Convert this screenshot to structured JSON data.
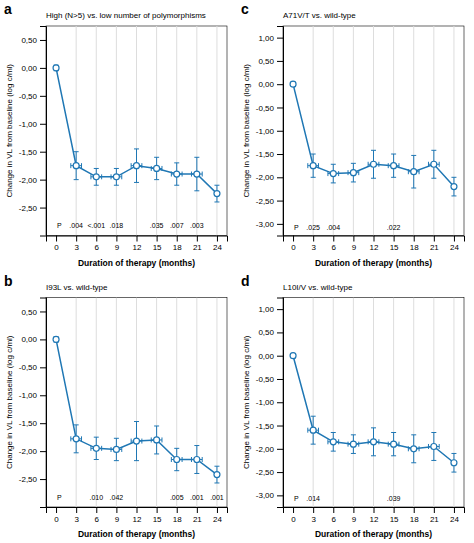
{
  "chart_data": [
    {
      "type": "line",
      "panel_label": "a",
      "title": "High (N>5) vs. low number of polymorphisms",
      "xlabel": "Duration of therapy (months)",
      "ylabel": "Change in VL from baseline (log c/ml)",
      "x": [
        0,
        3,
        6,
        9,
        12,
        15,
        18,
        21,
        24
      ],
      "series": [
        {
          "marker": "circle",
          "values": [
            0.0,
            -1.75,
            -1.95,
            -1.95,
            -1.75,
            -1.8,
            -1.9,
            -1.9,
            -2.25
          ],
          "yerr_low": [
            0.05,
            0.25,
            0.15,
            0.15,
            0.3,
            0.2,
            0.2,
            0.3,
            0.15
          ],
          "yerr_high": [
            0.05,
            0.25,
            0.15,
            0.15,
            0.3,
            0.2,
            0.2,
            0.3,
            0.15
          ],
          "xerr": [
            0,
            0.8,
            0.8,
            0.8,
            0.8,
            0.8,
            0.8,
            0.8,
            0
          ]
        }
      ],
      "xlim": [
        -1.5,
        25.5
      ],
      "xticks": [
        0,
        3,
        6,
        9,
        12,
        15,
        18,
        21,
        24
      ],
      "ylim": [
        -3.0,
        0.75
      ],
      "yticks": [
        {
          "value": 0.5,
          "label": "0,50"
        },
        {
          "value": 0.0,
          "label": "0,00"
        },
        {
          "value": -0.5,
          "label": "-0,50"
        },
        {
          "value": -1.0,
          "label": "-1,00"
        },
        {
          "value": -1.5,
          "label": "-1,50"
        },
        {
          "value": -2.0,
          "label": "-2,00"
        },
        {
          "value": -2.5,
          "label": "-2,50"
        }
      ],
      "vlines": [
        3,
        6,
        9,
        12,
        15,
        18,
        21,
        24
      ],
      "annotations": [
        {
          "text": "P",
          "x": 0.5,
          "y": -2.78
        },
        {
          "text": ".004",
          "x": 3,
          "y": -2.78
        },
        {
          "text": "<.001",
          "x": 6,
          "y": -2.78
        },
        {
          "text": ".018",
          "x": 9,
          "y": -2.78
        },
        {
          "text": ".035",
          "x": 15,
          "y": -2.78
        },
        {
          "text": ".007",
          "x": 18,
          "y": -2.78
        },
        {
          "text": ".003",
          "x": 21,
          "y": -2.78
        }
      ]
    },
    {
      "type": "line",
      "panel_label": "c",
      "title": "A71V/T vs. wild-type",
      "xlabel": "Duration of therapy (months)",
      "ylabel": "Change in VL from baseline (log c/ml)",
      "x": [
        0,
        3,
        6,
        9,
        12,
        15,
        18,
        21,
        24
      ],
      "series": [
        {
          "marker": "circle",
          "values": [
            0.0,
            -1.75,
            -1.92,
            -1.9,
            -1.72,
            -1.75,
            -1.88,
            -1.72,
            -2.2
          ],
          "yerr_low": [
            0.05,
            0.25,
            0.2,
            0.2,
            0.3,
            0.25,
            0.35,
            0.3,
            0.2
          ],
          "yerr_high": [
            0.05,
            0.25,
            0.2,
            0.2,
            0.3,
            0.25,
            0.35,
            0.3,
            0.2
          ],
          "xerr": [
            0,
            0.8,
            0.8,
            0.8,
            0.8,
            0.8,
            0.8,
            0.8,
            0
          ]
        }
      ],
      "xlim": [
        -1.5,
        25.5
      ],
      "xticks": [
        0,
        3,
        6,
        9,
        12,
        15,
        18,
        21,
        24
      ],
      "ylim": [
        -3.25,
        1.25
      ],
      "yticks": [
        {
          "value": 1.0,
          "label": "1,00"
        },
        {
          "value": 0.5,
          "label": "0,50"
        },
        {
          "value": 0.0,
          "label": "0,00"
        },
        {
          "value": -0.5,
          "label": "-0,50"
        },
        {
          "value": -1.0,
          "label": "-1,00"
        },
        {
          "value": -1.5,
          "label": "-1,50"
        },
        {
          "value": -2.0,
          "label": "-2,00"
        },
        {
          "value": -2.5,
          "label": "-2,50"
        },
        {
          "value": -3.0,
          "label": "-3,00"
        }
      ],
      "vlines": [
        3,
        6,
        9,
        12,
        15,
        18,
        21,
        24
      ],
      "annotations": [
        {
          "text": "P",
          "x": 0.5,
          "y": -3.02
        },
        {
          "text": ".025",
          "x": 3,
          "y": -3.02
        },
        {
          "text": ".004",
          "x": 6,
          "y": -3.02
        },
        {
          "text": ".022",
          "x": 15,
          "y": -3.02
        }
      ]
    },
    {
      "type": "line",
      "panel_label": "b",
      "title": "I93L vs. wild-type",
      "xlabel": "Duration of therapy (months)",
      "ylabel": "Change in VL from baseline (log c/ml)",
      "x": [
        0,
        3,
        6,
        9,
        12,
        15,
        18,
        21,
        24
      ],
      "series": [
        {
          "marker": "circle",
          "values": [
            0.0,
            -1.78,
            -1.95,
            -1.97,
            -1.82,
            -1.8,
            -2.15,
            -2.15,
            -2.42
          ],
          "yerr_low": [
            0.05,
            0.25,
            0.2,
            0.2,
            0.35,
            0.25,
            0.2,
            0.25,
            0.15
          ],
          "yerr_high": [
            0.05,
            0.25,
            0.2,
            0.2,
            0.35,
            0.25,
            0.2,
            0.25,
            0.15
          ],
          "xerr": [
            0,
            0.8,
            0.8,
            0.8,
            0.8,
            0.8,
            0.8,
            0.8,
            0
          ]
        }
      ],
      "xlim": [
        -1.5,
        25.5
      ],
      "xticks": [
        0,
        3,
        6,
        9,
        12,
        15,
        18,
        21,
        24
      ],
      "ylim": [
        -3.0,
        0.75
      ],
      "yticks": [
        {
          "value": 0.5,
          "label": "0,50"
        },
        {
          "value": 0.0,
          "label": "0,00"
        },
        {
          "value": -0.5,
          "label": "-0,50"
        },
        {
          "value": -1.0,
          "label": "-1,00"
        },
        {
          "value": -1.5,
          "label": "-1,50"
        },
        {
          "value": -2.0,
          "label": "-2,00"
        },
        {
          "value": -2.5,
          "label": "-2,50"
        }
      ],
      "vlines": [
        3,
        6,
        9,
        12,
        15,
        18,
        21,
        24
      ],
      "annotations": [
        {
          "text": "P",
          "x": 0.5,
          "y": -2.78
        },
        {
          "text": ".010",
          "x": 6,
          "y": -2.78
        },
        {
          "text": ".042",
          "x": 9,
          "y": -2.78
        },
        {
          "text": ".005",
          "x": 18,
          "y": -2.78
        },
        {
          "text": ".001",
          "x": 21,
          "y": -2.78
        },
        {
          "text": ".001",
          "x": 24,
          "y": -2.78
        }
      ]
    },
    {
      "type": "line",
      "panel_label": "d",
      "title": "L10I/V vs. wild-type",
      "xlabel": "Duration of therapy (months)",
      "ylabel": "Change in VL from baseline (log c/ml)",
      "x": [
        0,
        3,
        6,
        9,
        12,
        15,
        18,
        21,
        24
      ],
      "series": [
        {
          "marker": "circle",
          "values": [
            0.0,
            -1.6,
            -1.85,
            -1.9,
            -1.85,
            -1.9,
            -2.0,
            -1.95,
            -2.3
          ],
          "yerr_low": [
            0.05,
            0.3,
            0.2,
            0.2,
            0.3,
            0.25,
            0.3,
            0.3,
            0.2
          ],
          "yerr_high": [
            0.05,
            0.3,
            0.2,
            0.2,
            0.3,
            0.25,
            0.3,
            0.3,
            0.2
          ],
          "xerr": [
            0,
            0.8,
            0.8,
            0.8,
            0.8,
            0.8,
            0.8,
            0.8,
            0
          ]
        }
      ],
      "xlim": [
        -1.5,
        25.5
      ],
      "xticks": [
        0,
        3,
        6,
        9,
        12,
        15,
        18,
        21,
        24
      ],
      "ylim": [
        -3.25,
        1.25
      ],
      "yticks": [
        {
          "value": 1.0,
          "label": "1,00"
        },
        {
          "value": 0.5,
          "label": "0,50"
        },
        {
          "value": 0.0,
          "label": "0,00"
        },
        {
          "value": -0.5,
          "label": "-0,50"
        },
        {
          "value": -1.0,
          "label": "-1,00"
        },
        {
          "value": -1.5,
          "label": "-1,50"
        },
        {
          "value": -2.0,
          "label": "-2,00"
        },
        {
          "value": -2.5,
          "label": "-2,50"
        },
        {
          "value": -3.0,
          "label": "-3,00"
        }
      ],
      "vlines": [
        3,
        6,
        9,
        12,
        15,
        18,
        21,
        24
      ],
      "annotations": [
        {
          "text": "P",
          "x": 0.5,
          "y": -3.02
        },
        {
          "text": ".014",
          "x": 3,
          "y": -3.02
        },
        {
          "text": ".039",
          "x": 15,
          "y": -3.02
        }
      ]
    }
  ]
}
